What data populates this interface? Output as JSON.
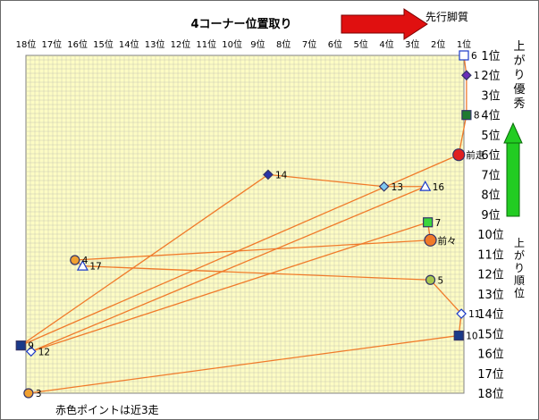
{
  "chart_data": {
    "type": "scatter",
    "title": "4コーナー位置取り",
    "xlabel": "先行脚質",
    "ylabel": "上がり優秀",
    "ylabel_bottom": "上がり順位",
    "note": "赤色ポイントは近3走",
    "x_range": [
      18,
      1
    ],
    "y_range": [
      1,
      18
    ],
    "x_ticks": [
      "18位",
      "17位",
      "16位",
      "15位",
      "14位",
      "13位",
      "12位",
      "11位",
      "10位",
      "9位",
      "8位",
      "7位",
      "6位",
      "5位",
      "4位",
      "3位",
      "2位",
      "1位"
    ],
    "y_ticks": [
      "1位",
      "2位",
      "3位",
      "4位",
      "5位",
      "6位",
      "7位",
      "8位",
      "9位",
      "10位",
      "11位",
      "12位",
      "13位",
      "14位",
      "15位",
      "16位",
      "17位",
      "18位"
    ],
    "grid": true,
    "path_order": [
      "6",
      "1",
      "8",
      "前走",
      "9",
      "14",
      "13",
      "16",
      "12",
      "7",
      "前々",
      "4",
      "17",
      "5",
      "11",
      "10",
      "3"
    ],
    "points": [
      {
        "label": "6",
        "x": 1.0,
        "y": 1.0,
        "shape": "square",
        "color": "#ffffff"
      },
      {
        "label": "1",
        "x": 0.9,
        "y": 2.0,
        "shape": "diamond",
        "color": "#6a2fb8"
      },
      {
        "label": "8",
        "x": 0.9,
        "y": 4.0,
        "shape": "square",
        "color": "#1f7a2f"
      },
      {
        "label": "前走",
        "x": 1.2,
        "y": 6.0,
        "shape": "circle",
        "color": "#e02020"
      },
      {
        "label": "9",
        "x": 18.2,
        "y": 15.6,
        "shape": "square",
        "color": "#1a3a8a"
      },
      {
        "label": "14",
        "x": 8.6,
        "y": 7.0,
        "shape": "diamond",
        "color": "#2a35a8"
      },
      {
        "label": "13",
        "x": 4.1,
        "y": 7.6,
        "shape": "diamond",
        "color": "#7ec8f0"
      },
      {
        "label": "16",
        "x": 2.5,
        "y": 7.6,
        "shape": "triangle",
        "color": "#ffffff"
      },
      {
        "label": "12",
        "x": 17.8,
        "y": 15.9,
        "shape": "diamond",
        "color": "#ffffff"
      },
      {
        "label": "7",
        "x": 2.4,
        "y": 9.4,
        "shape": "square",
        "color": "#3cd63c"
      },
      {
        "label": "前々",
        "x": 2.3,
        "y": 10.3,
        "shape": "circle",
        "color": "#f07a2a"
      },
      {
        "label": "4",
        "x": 16.1,
        "y": 11.3,
        "shape": "circle",
        "color": "#f0a030"
      },
      {
        "label": "17",
        "x": 15.8,
        "y": 11.6,
        "shape": "triangle",
        "color": "#ffffff"
      },
      {
        "label": "5",
        "x": 2.3,
        "y": 12.3,
        "shape": "circle",
        "color": "#a8c850"
      },
      {
        "label": "11",
        "x": 1.1,
        "y": 14.0,
        "shape": "diamond",
        "color": "#ffffff"
      },
      {
        "label": "10",
        "x": 1.2,
        "y": 15.1,
        "shape": "square",
        "color": "#1a3a8a"
      },
      {
        "label": "3",
        "x": 17.9,
        "y": 18.0,
        "shape": "circle",
        "color": "#f0a030"
      }
    ],
    "colors": {
      "background": "#fdfcc4",
      "grid": "#bcbcb0",
      "line": "#f07a2a",
      "arrow_right": "#e01010",
      "arrow_up": "#22cc22"
    }
  }
}
